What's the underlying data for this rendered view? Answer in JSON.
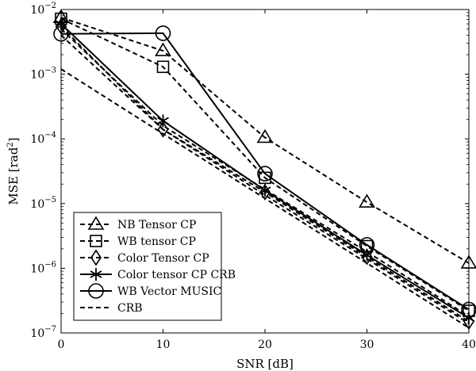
{
  "chart_data": {
    "type": "line",
    "xlabel": "SNR [dB]",
    "ylabel": "MSE [rad",
    "ylabel_sup": "2",
    "ylabel_end": "]",
    "xlim": [
      0,
      40
    ],
    "ylim": [
      1e-07,
      0.01
    ],
    "yscale": "log",
    "grid": false,
    "legend_position": "bottom-left",
    "x_ticks": [
      0,
      10,
      20,
      30,
      40
    ],
    "x_tick_labels": [
      "0",
      "10",
      "20",
      "30",
      "40"
    ],
    "y_ticks": [
      1e-07,
      1e-06,
      1e-05,
      0.0001,
      0.001,
      0.01
    ],
    "y_tick_base": [
      "10",
      "10",
      "10",
      "10",
      "10",
      "10"
    ],
    "y_tick_exp": [
      "−7",
      "−6",
      "−5",
      "−4",
      "−3",
      "−2"
    ],
    "x": [
      0,
      10,
      20,
      30,
      40
    ],
    "series": [
      {
        "name": "NB Tensor CP",
        "marker": "triangle",
        "dashed": true,
        "values": [
          0.0075,
          0.0023,
          0.000105,
          1.05e-05,
          1.2e-06
        ]
      },
      {
        "name": "WB tensor CP",
        "marker": "square",
        "dashed": true,
        "values": [
          0.0072,
          0.0013,
          2.5e-05,
          2.2e-06,
          2.2e-07
        ]
      },
      {
        "name": "Color Tensor CP",
        "marker": "diamond",
        "dashed": true,
        "values": [
          0.0055,
          0.00014,
          1.5e-05,
          1.5e-06,
          1.5e-07
        ]
      },
      {
        "name": "Color tensor CP CRB",
        "marker": "star",
        "dashed": false,
        "values": [
          0.006,
          0.00019,
          1.6e-05,
          1.6e-06,
          1.7e-07
        ]
      },
      {
        "name": "WB Vector MUSIC",
        "marker": "circle",
        "dashed": false,
        "values": [
          0.0042,
          0.0043,
          2.9e-05,
          2.3e-06,
          2.3e-07
        ]
      },
      {
        "name": "CRB",
        "marker": "none",
        "dashed": true,
        "values": [
          0.0012,
          0.00012,
          1.2e-05,
          1.2e-06,
          1.2e-07
        ]
      }
    ],
    "extra_reference_lines": [
      {
        "marker": "none",
        "dashed": true,
        "values": [
          0.005,
          0.00016,
          1.65e-05,
          1.8e-06,
          1.8e-07
        ]
      },
      {
        "marker": "none",
        "dashed": true,
        "values": [
          0.004,
          0.00014,
          1.35e-05,
          1.4e-06,
          1.4e-07
        ]
      }
    ]
  }
}
